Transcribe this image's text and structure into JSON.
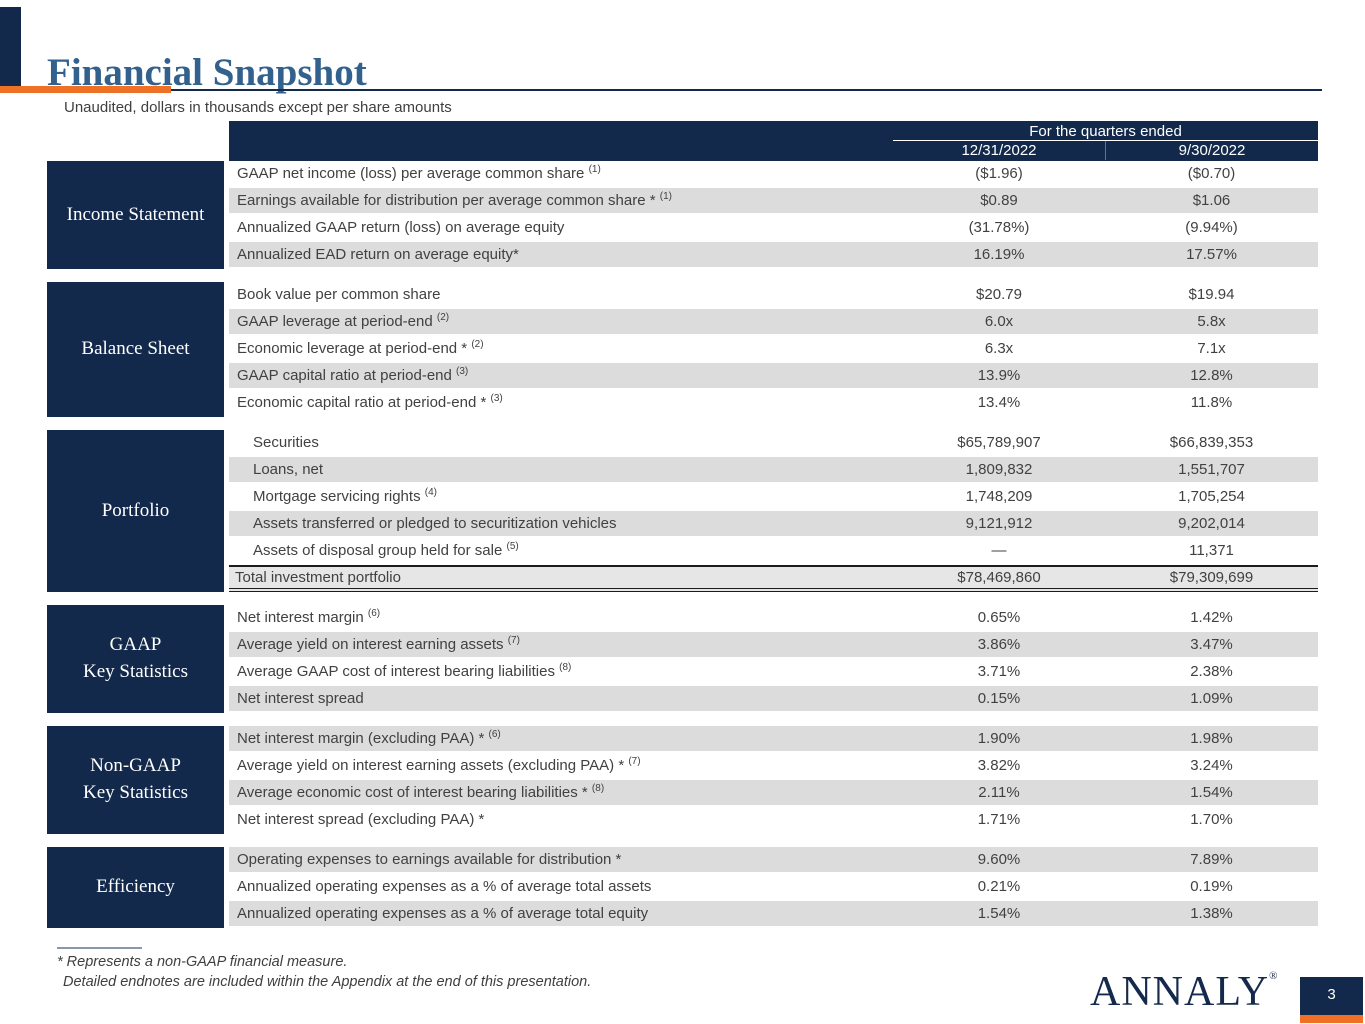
{
  "page": {
    "title": "Financial Snapshot",
    "subtitle": "Unaudited, dollars in thousands except per share amounts",
    "logo_text": "ANNALY",
    "logo_reg": "®",
    "page_number": "3"
  },
  "colors": {
    "navy": "#13294B",
    "orange": "#EE7125",
    "title_blue": "#33618D",
    "row_gray": "#DCDCDC",
    "total_row_gray": "#E6E6E6",
    "text": "#414141"
  },
  "table": {
    "header": {
      "group_label": "For the quarters ended",
      "columns": [
        "12/31/2022",
        "9/30/2022"
      ]
    },
    "sections": [
      {
        "name": "Income Statement",
        "label_lines": [
          "Income Statement"
        ],
        "rows": [
          {
            "label": "GAAP net income (loss) per average common share",
            "sup": "(1)",
            "values": [
              "($1.96)",
              "($0.70)"
            ],
            "shaded": false
          },
          {
            "label": "Earnings available for distribution per average common share *",
            "sup": "(1)",
            "values": [
              "$0.89",
              "$1.06"
            ],
            "shaded": true
          },
          {
            "label": "Annualized GAAP return (loss) on average equity",
            "sup": "",
            "values": [
              "(31.78%)",
              "(9.94%)"
            ],
            "shaded": false
          },
          {
            "label": "Annualized EAD return on average equity*",
            "sup": "",
            "values": [
              "16.19%",
              "17.57%"
            ],
            "shaded": true
          }
        ]
      },
      {
        "name": "Balance Sheet",
        "label_lines": [
          "Balance Sheet"
        ],
        "rows": [
          {
            "label": "Book value per common share",
            "sup": "",
            "values": [
              "$20.79",
              "$19.94"
            ],
            "shaded": false
          },
          {
            "label": "GAAP leverage at period-end",
            "sup": "(2)",
            "values": [
              "6.0x",
              "5.8x"
            ],
            "shaded": true
          },
          {
            "label": "Economic leverage at period-end *",
            "sup": "(2)",
            "values": [
              "6.3x",
              "7.1x"
            ],
            "shaded": false
          },
          {
            "label": "GAAP capital ratio at period-end",
            "sup": "(3)",
            "values": [
              "13.9%",
              "12.8%"
            ],
            "shaded": true
          },
          {
            "label": "Economic capital ratio at period-end *",
            "sup": "(3)",
            "values": [
              "13.4%",
              "11.8%"
            ],
            "shaded": false
          }
        ]
      },
      {
        "name": "Portfolio",
        "label_lines": [
          "Portfolio"
        ],
        "rows": [
          {
            "label": "Securities",
            "sup": "",
            "values": [
              "$65,789,907",
              "$66,839,353"
            ],
            "shaded": false,
            "indent": true
          },
          {
            "label": "Loans, net",
            "sup": "",
            "values": [
              "1,809,832",
              "1,551,707"
            ],
            "shaded": true,
            "indent": true
          },
          {
            "label": "Mortgage servicing rights",
            "sup": "(4)",
            "values": [
              "1,748,209",
              "1,705,254"
            ],
            "shaded": false,
            "indent": true
          },
          {
            "label": "Assets transferred or pledged to securitization vehicles",
            "sup": "",
            "values": [
              "9,121,912",
              "9,202,014"
            ],
            "shaded": true,
            "indent": true
          },
          {
            "label": "Assets of disposal group held for sale",
            "sup": "(5)",
            "values": [
              "—",
              "11,371"
            ],
            "shaded": false,
            "indent": true
          },
          {
            "label": "Total investment portfolio",
            "sup": "",
            "values": [
              "$78,469,860",
              "$79,309,699"
            ],
            "shaded": false,
            "total": true
          }
        ]
      },
      {
        "name": "GAAP Key Statistics",
        "label_lines": [
          "GAAP",
          "Key Statistics"
        ],
        "rows": [
          {
            "label": "Net interest margin",
            "sup": "(6)",
            "values": [
              "0.65%",
              "1.42%"
            ],
            "shaded": false
          },
          {
            "label": "Average yield on interest earning assets",
            "sup": "(7)",
            "values": [
              "3.86%",
              "3.47%"
            ],
            "shaded": true
          },
          {
            "label": "Average GAAP cost of interest bearing liabilities",
            "sup": "(8)",
            "values": [
              "3.71%",
              "2.38%"
            ],
            "shaded": false
          },
          {
            "label": "Net interest spread",
            "sup": "",
            "values": [
              "0.15%",
              "1.09%"
            ],
            "shaded": true
          }
        ]
      },
      {
        "name": "Non-GAAP Key Statistics",
        "label_lines": [
          "Non-GAAP",
          "Key Statistics"
        ],
        "rows": [
          {
            "label": "Net interest margin (excluding PAA) *",
            "sup": "(6)",
            "values": [
              "1.90%",
              "1.98%"
            ],
            "shaded": true
          },
          {
            "label": "Average yield on interest earning assets (excluding PAA) *",
            "sup": "(7)",
            "values": [
              "3.82%",
              "3.24%"
            ],
            "shaded": false
          },
          {
            "label": "Average economic cost of interest bearing liabilities *",
            "sup": "(8)",
            "values": [
              "2.11%",
              "1.54%"
            ],
            "shaded": true
          },
          {
            "label": "Net interest spread (excluding PAA) *",
            "sup": "",
            "values": [
              "1.71%",
              "1.70%"
            ],
            "shaded": false
          }
        ]
      },
      {
        "name": "Efficiency",
        "label_lines": [
          "Efficiency"
        ],
        "rows": [
          {
            "label": "Operating expenses to earnings available for distribution *",
            "sup": "",
            "values": [
              "9.60%",
              "7.89%"
            ],
            "shaded": true
          },
          {
            "label": "Annualized operating expenses as a % of average total assets",
            "sup": "",
            "values": [
              "0.21%",
              "0.19%"
            ],
            "shaded": false
          },
          {
            "label": "Annualized operating expenses as a % of average total equity",
            "sup": "",
            "values": [
              "1.54%",
              "1.38%"
            ],
            "shaded": true
          }
        ]
      }
    ]
  },
  "footer": {
    "note1": "* Represents a non-GAAP financial measure.",
    "note2": "Detailed endnotes are included within the Appendix at the end of this presentation."
  }
}
